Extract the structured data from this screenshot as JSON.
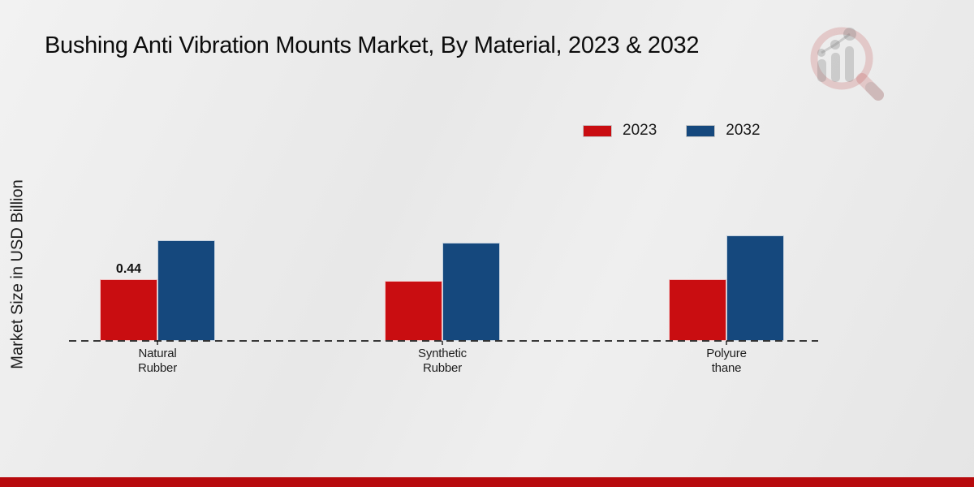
{
  "header": {
    "title": "Bushing Anti Vibration Mounts Market, By Material, 2023 & 2032"
  },
  "branding": {
    "logo_icon": "magnifier-bar-chart-logo",
    "footer_accent_color": "#b70a0d"
  },
  "chart_data": {
    "type": "bar",
    "title": "Bushing Anti Vibration Mounts Market, By Material, 2023 & 2032",
    "categories": [
      "Natural Rubber",
      "Synthetic Rubber",
      "Polyurethane"
    ],
    "category_label_lines": [
      [
        "Natural",
        "Rubber"
      ],
      [
        "Synthetic",
        "Rubber"
      ],
      [
        "Polyure",
        "thane"
      ]
    ],
    "series": [
      {
        "name": "2023",
        "color": "#c90d11",
        "values": [
          0.44,
          0.43,
          0.44
        ],
        "data_labels": [
          "0.44",
          "",
          ""
        ]
      },
      {
        "name": "2032",
        "color": "#15487d",
        "values": [
          0.72,
          0.7,
          0.75
        ],
        "data_labels": [
          "",
          "",
          ""
        ]
      }
    ],
    "xlabel": "",
    "ylabel": "Market Size in USD Billion",
    "ylim": [
      0,
      0.8
    ],
    "grid": false,
    "legend_position": "top-right",
    "baseline_style": "dashed",
    "y_axis_ticks_visible": false
  }
}
